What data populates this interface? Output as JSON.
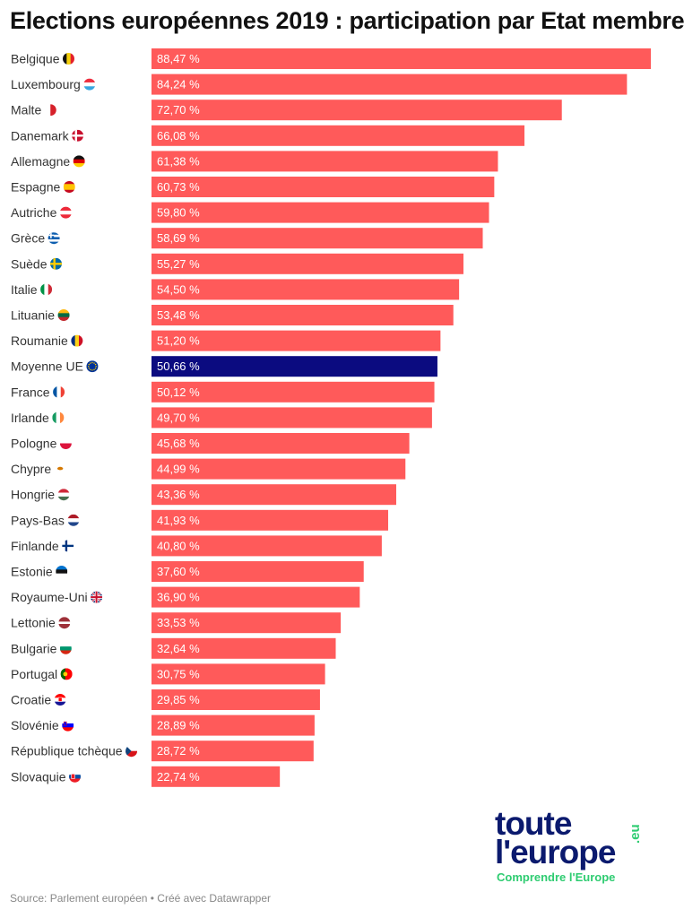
{
  "title": "Elections européennes 2019 : participation par Etat membre",
  "source": "Source: Parlement européen • Créé avec Datawrapper",
  "logo": {
    "line1": "toute",
    "line2": "l'europe",
    "suffix": ".eu",
    "tagline": "Comprendre l'Europe"
  },
  "colors": {
    "bar": "#ff5a5a",
    "highlight": "#0b0b80",
    "logo_text": "#0b1a6e",
    "logo_accent": "#2ecc71"
  },
  "chart_data": {
    "type": "bar",
    "orientation": "horizontal",
    "title": "Elections européennes 2019 : participation par Etat membre",
    "xlim": [
      0,
      88.47
    ],
    "value_suffix": " %",
    "highlight_category": "Moyenne UE",
    "categories": [
      "Belgique",
      "Luxembourg",
      "Malte",
      "Danemark",
      "Allemagne",
      "Espagne",
      "Autriche",
      "Grèce",
      "Suède",
      "Italie",
      "Lituanie",
      "Roumanie",
      "Moyenne UE",
      "France",
      "Irlande",
      "Pologne",
      "Chypre",
      "Hongrie",
      "Pays-Bas",
      "Finlande",
      "Estonie",
      "Royaume-Uni",
      "Lettonie",
      "Bulgarie",
      "Portugal",
      "Croatie",
      "Slovénie",
      "République tchèque",
      "Slovaquie"
    ],
    "values": [
      88.47,
      84.24,
      72.7,
      66.08,
      61.38,
      60.73,
      59.8,
      58.69,
      55.27,
      54.5,
      53.48,
      51.2,
      50.66,
      50.12,
      49.7,
      45.68,
      44.99,
      43.36,
      41.93,
      40.8,
      37.6,
      36.9,
      33.53,
      32.64,
      30.75,
      29.85,
      28.89,
      28.72,
      22.74
    ],
    "value_labels": [
      "88,47 %",
      "84,24 %",
      "72,70 %",
      "66,08 %",
      "61,38 %",
      "60,73 %",
      "59,80 %",
      "58,69 %",
      "55,27 %",
      "54,50 %",
      "53,48 %",
      "51,20 %",
      "50,66 %",
      "50,12 %",
      "49,70 %",
      "45,68 %",
      "44,99 %",
      "43,36 %",
      "41,93 %",
      "40,80 %",
      "37,60 %",
      "36,90 %",
      "33,53 %",
      "32,64 %",
      "30,75 %",
      "29,85 %",
      "28,89 %",
      "28,72 %",
      "22,74 %"
    ],
    "flag_icons": [
      "belgium-flag-icon",
      "luxembourg-flag-icon",
      "malta-flag-icon",
      "denmark-flag-icon",
      "germany-flag-icon",
      "spain-flag-icon",
      "austria-flag-icon",
      "greece-flag-icon",
      "sweden-flag-icon",
      "italy-flag-icon",
      "lithuania-flag-icon",
      "romania-flag-icon",
      "eu-flag-icon",
      "france-flag-icon",
      "ireland-flag-icon",
      "poland-flag-icon",
      "cyprus-flag-icon",
      "hungary-flag-icon",
      "netherlands-flag-icon",
      "finland-flag-icon",
      "estonia-flag-icon",
      "uk-flag-icon",
      "latvia-flag-icon",
      "bulgaria-flag-icon",
      "portugal-flag-icon",
      "croatia-flag-icon",
      "slovenia-flag-icon",
      "czech-flag-icon",
      "slovakia-flag-icon"
    ],
    "grid": false,
    "legend": "none"
  }
}
